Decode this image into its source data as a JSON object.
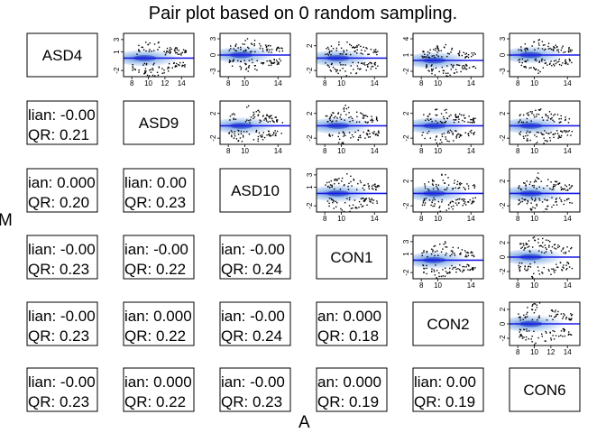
{
  "title": "Pair plot based on 0 random sampling.",
  "ylabel": "M",
  "xlabel": "A",
  "chart_data": {
    "type": "scatter",
    "kind": "pairwise MA plot matrix",
    "title": "Pair plot based on 0 random sampling.",
    "xlabel": "A",
    "ylabel": "M",
    "samples": [
      "ASD4",
      "ASD9",
      "ASD10",
      "CON1",
      "CON2",
      "CON6"
    ],
    "colors": {
      "density_light": "#dce8f8",
      "density_mid": "#6f9ee0",
      "density_core": "#1f3fc4",
      "fit_line": "#1a1ae6",
      "points": "#000000"
    },
    "upper_panels": [
      {
        "row": "ASD4",
        "col": "ASD9",
        "x_ticks": [
          "8",
          "10",
          "12",
          "14"
        ],
        "y_ticks": [
          "-2",
          "1",
          "3"
        ],
        "ylim": [
          -3,
          4
        ]
      },
      {
        "row": "ASD4",
        "col": "ASD10",
        "x_ticks": [
          "8",
          "10",
          "14"
        ],
        "y_ticks": [
          "-3",
          "0",
          "3"
        ],
        "ylim": [
          -4,
          4
        ]
      },
      {
        "row": "ASD4",
        "col": "CON1",
        "x_ticks": [
          "8",
          "10",
          "14"
        ],
        "y_ticks": [
          "-2",
          "2"
        ],
        "ylim": [
          -3,
          4
        ]
      },
      {
        "row": "ASD4",
        "col": "CON2",
        "x_ticks": [
          "8",
          "10",
          "14"
        ],
        "y_ticks": [
          "-2",
          "1",
          "4"
        ],
        "ylim": [
          -3,
          5
        ]
      },
      {
        "row": "ASD4",
        "col": "CON6",
        "x_ticks": [
          "8",
          "10",
          "14"
        ],
        "y_ticks": [
          "-3",
          "0",
          "3"
        ],
        "ylim": [
          -4,
          4
        ]
      },
      {
        "row": "ASD9",
        "col": "ASD10",
        "x_ticks": [
          "8",
          "10",
          "14"
        ],
        "y_ticks": [
          "-2",
          "2"
        ],
        "ylim": [
          -3,
          4
        ]
      },
      {
        "row": "ASD9",
        "col": "CON1",
        "x_ticks": [
          "8",
          "10",
          "14"
        ],
        "y_ticks": [
          "-2",
          "2"
        ],
        "ylim": [
          -3,
          4
        ]
      },
      {
        "row": "ASD9",
        "col": "CON2",
        "x_ticks": [
          "8",
          "10",
          "14"
        ],
        "y_ticks": [
          "-2",
          "2"
        ],
        "ylim": [
          -3,
          4
        ]
      },
      {
        "row": "ASD9",
        "col": "CON6",
        "x_ticks": [
          "8",
          "10",
          "14"
        ],
        "y_ticks": [
          "-2",
          "2"
        ],
        "ylim": [
          -3,
          4
        ]
      },
      {
        "row": "ASD10",
        "col": "CON1",
        "x_ticks": [
          "8",
          "10",
          "14"
        ],
        "y_ticks": [
          "-2",
          "1",
          "3"
        ],
        "ylim": [
          -3,
          4
        ]
      },
      {
        "row": "ASD10",
        "col": "CON2",
        "x_ticks": [
          "8",
          "10",
          "14"
        ],
        "y_ticks": [
          "-2",
          "2"
        ],
        "ylim": [
          -3,
          4
        ]
      },
      {
        "row": "ASD10",
        "col": "CON6",
        "x_ticks": [
          "8",
          "10",
          "14"
        ],
        "y_ticks": [
          "-2",
          "2"
        ],
        "ylim": [
          -3,
          4
        ]
      },
      {
        "row": "CON1",
        "col": "CON2",
        "x_ticks": [
          "8",
          "10",
          "14"
        ],
        "y_ticks": [
          "-2",
          "1",
          "3"
        ],
        "ylim": [
          -3,
          4
        ]
      },
      {
        "row": "CON1",
        "col": "CON6",
        "x_ticks": [
          "8",
          "10",
          "14"
        ],
        "y_ticks": [
          "-2",
          "0",
          "2"
        ],
        "ylim": [
          -3,
          3
        ]
      },
      {
        "row": "CON2",
        "col": "CON6",
        "x_ticks": [
          "8",
          "10",
          "12",
          "14"
        ],
        "y_ticks": [
          "-2",
          "0",
          "2"
        ],
        "ylim": [
          -3,
          3
        ]
      }
    ],
    "lower_panels": [
      {
        "row": "ASD9",
        "col": "ASD4",
        "line1": "lian: -0.00",
        "line2": "QR: 0.21"
      },
      {
        "row": "ASD10",
        "col": "ASD4",
        "line1": "ian: 0.000",
        "line2": "QR: 0.20"
      },
      {
        "row": "ASD10",
        "col": "ASD9",
        "line1": "lian: 0.00",
        "line2": "QR: 0.23"
      },
      {
        "row": "CON1",
        "col": "ASD4",
        "line1": "lian: -0.00",
        "line2": "QR: 0.23"
      },
      {
        "row": "CON1",
        "col": "ASD9",
        "line1": "ian: -0.00",
        "line2": "QR: 0.22"
      },
      {
        "row": "CON1",
        "col": "ASD10",
        "line1": "ian: -0.00",
        "line2": "QR: 0.24"
      },
      {
        "row": "CON2",
        "col": "ASD4",
        "line1": "lian: -0.00",
        "line2": "QR: 0.23"
      },
      {
        "row": "CON2",
        "col": "ASD9",
        "line1": "ian: 0.000",
        "line2": "QR: 0.22"
      },
      {
        "row": "CON2",
        "col": "ASD10",
        "line1": "ian: -0.00",
        "line2": "QR: 0.24"
      },
      {
        "row": "CON2",
        "col": "CON1",
        "line1": "an: 0.000",
        "line2": "QR: 0.18"
      },
      {
        "row": "CON6",
        "col": "ASD4",
        "line1": "lian: -0.00",
        "line2": "QR: 0.23"
      },
      {
        "row": "CON6",
        "col": "ASD9",
        "line1": "ian: 0.000",
        "line2": "QR: 0.22"
      },
      {
        "row": "CON6",
        "col": "ASD10",
        "line1": "ian: -0.00",
        "line2": "QR: 0.23"
      },
      {
        "row": "CON6",
        "col": "CON1",
        "line1": "an: 0.000",
        "line2": "QR: 0.19"
      },
      {
        "row": "CON6",
        "col": "CON2",
        "line1": "lian: 0.00",
        "line2": "QR: 0.19"
      }
    ]
  }
}
